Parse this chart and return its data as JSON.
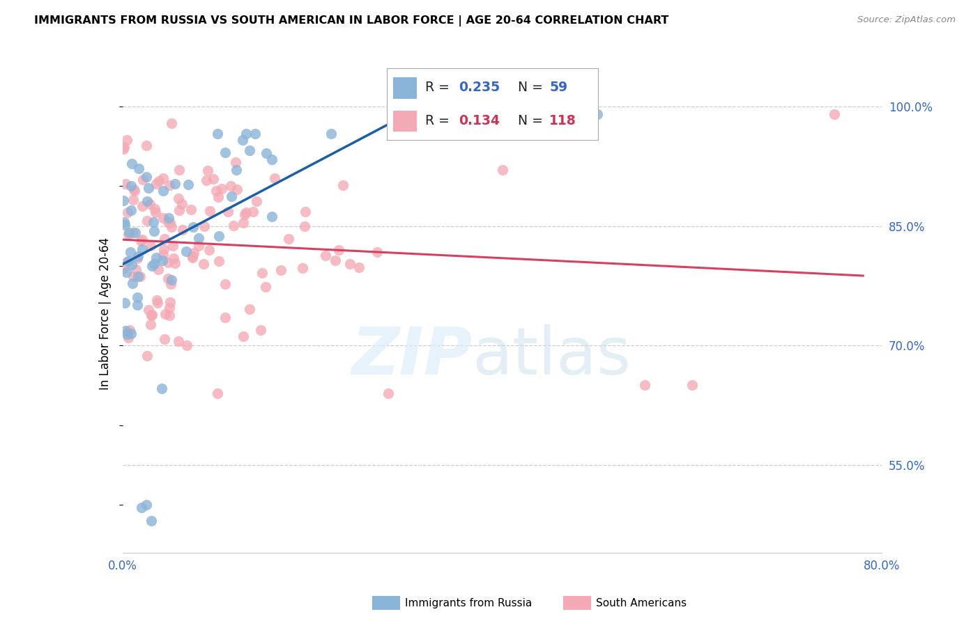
{
  "title": "IMMIGRANTS FROM RUSSIA VS SOUTH AMERICAN IN LABOR FORCE | AGE 20-64 CORRELATION CHART",
  "source": "Source: ZipAtlas.com",
  "ylabel": "In Labor Force | Age 20-64",
  "xlim": [
    0.0,
    0.8
  ],
  "ylim": [
    0.44,
    1.04
  ],
  "xtick_positions": [
    0.0,
    0.1,
    0.2,
    0.3,
    0.4,
    0.5,
    0.6,
    0.7,
    0.8
  ],
  "xticklabels": [
    "0.0%",
    "",
    "",
    "",
    "",
    "",
    "",
    "",
    "80.0%"
  ],
  "yticks_right": [
    0.55,
    0.7,
    0.85,
    1.0
  ],
  "yticklabels_right": [
    "55.0%",
    "70.0%",
    "85.0%",
    "100.0%"
  ],
  "russia_R": 0.235,
  "russia_N": 59,
  "south_R": 0.134,
  "south_N": 118,
  "russia_scatter_color": "#8ab4d8",
  "south_scatter_color": "#f4aab5",
  "russia_line_color": "#1a5fa8",
  "south_line_color": "#d94060",
  "grid_color": "#cccccc",
  "tick_label_color": "#3366cc",
  "legend_R_color_russia": "#3366cc",
  "legend_N_color_russia": "#3366cc",
  "legend_R_color_south": "#cc3355",
  "legend_N_color_south": "#cc3355"
}
